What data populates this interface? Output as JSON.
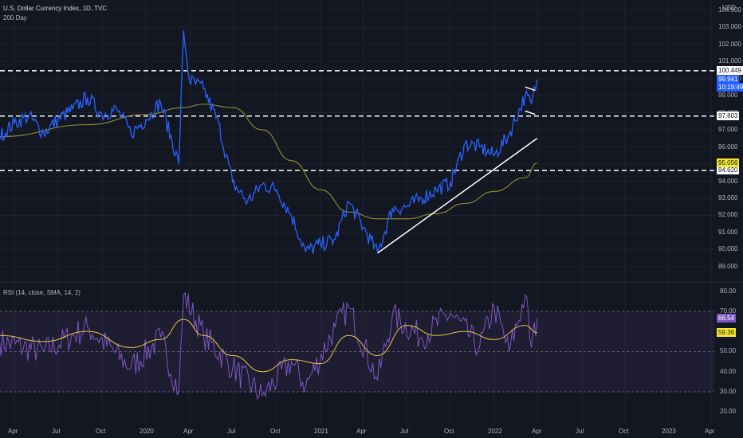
{
  "header": {
    "title": "U.S. Dollar Currency Index, 1D, TVC",
    "indicator": "200 Day",
    "currency": "USD",
    "countdown": "10:19:49"
  },
  "rsi_header": "RSI (14, close, SMA, 14, 2)",
  "colors": {
    "background": "#131722",
    "price_line": "#2962ff",
    "ma_line": "#8b8530",
    "rsi_line": "#7e57c2",
    "rsi_ma": "#e8c547",
    "price_tag": "#2962ff",
    "ma_tag": "#f5e52d",
    "rsi_tag": "#7e57c2",
    "grid": "#1e222d"
  },
  "chart_data": [
    {
      "type": "line",
      "title": "U.S. Dollar Currency Index, 1D, TVC",
      "ylabel": "USD",
      "ylim": [
        88.3,
        104.4
      ],
      "x_ticks": [
        "Apr",
        "Jul",
        "Oct",
        "2020",
        "Apr",
        "Jul",
        "Oct",
        "2021",
        "Apr",
        "Jul",
        "Oct",
        "2022",
        "Apr",
        "Jul",
        "Oct",
        "2023",
        "Apr"
      ],
      "y_ticks": [
        89.0,
        90.0,
        91.0,
        92.0,
        93.0,
        94.0,
        95.0,
        96.0,
        97.0,
        98.0,
        99.0,
        100.0,
        101.0,
        102.0,
        103.0,
        104.0
      ],
      "y_tick_labels": [
        "89.000",
        "90.000",
        "91.000",
        "92.000",
        "93.000",
        "94.000",
        "95.000",
        "96.000",
        "97.000",
        "98.000",
        "99.000",
        "100.000",
        "101.000",
        "102.000",
        "103.000",
        "104.000"
      ],
      "series": [
        {
          "name": "U.S. Dollar Currency Index",
          "x": [
            "2019-03",
            "2019-04",
            "2019-05",
            "2019-06",
            "2019-07",
            "2019-08",
            "2019-09",
            "2019-10",
            "2019-11",
            "2019-12",
            "2020-01",
            "2020-02",
            "2020-03-10",
            "2020-03-20",
            "2020-04",
            "2020-05",
            "2020-06",
            "2020-07",
            "2020-08",
            "2020-09",
            "2020-10",
            "2020-11",
            "2020-12",
            "2021-01",
            "2021-02",
            "2021-03",
            "2021-04",
            "2021-05",
            "2021-06",
            "2021-07",
            "2021-08",
            "2021-09",
            "2021-10",
            "2021-11",
            "2021-12",
            "2022-01",
            "2022-02",
            "2022-03-07",
            "2022-03-20",
            "2022-04"
          ],
          "values": [
            96.6,
            97.4,
            97.8,
            96.8,
            97.6,
            98.2,
            98.9,
            97.9,
            98.2,
            96.8,
            97.6,
            98.6,
            95.0,
            102.8,
            99.9,
            99.4,
            97.4,
            93.9,
            92.8,
            93.8,
            93.5,
            92.0,
            89.9,
            90.3,
            90.6,
            92.8,
            91.3,
            89.8,
            92.4,
            92.5,
            93.0,
            93.5,
            93.9,
            96.2,
            96.0,
            95.5,
            96.7,
            99.0,
            98.5,
            99.941
          ]
        },
        {
          "name": "200 Day",
          "x": [
            "2019-03",
            "2019-09",
            "2020-01",
            "2020-03-20",
            "2020-05",
            "2020-07",
            "2020-09",
            "2020-11",
            "2021-01",
            "2021-03",
            "2021-05",
            "2021-07",
            "2021-09",
            "2021-11",
            "2022-01",
            "2022-03-07",
            "2022-04"
          ],
          "values": [
            96.6,
            97.3,
            97.9,
            98.3,
            98.5,
            98.3,
            97.0,
            95.2,
            93.5,
            92.2,
            91.8,
            91.8,
            92.1,
            92.7,
            93.4,
            94.2,
            95.056
          ]
        }
      ],
      "levels": [
        100.449,
        97.803,
        94.62
      ],
      "level_labels": [
        "100.449",
        "97.803",
        "94.620"
      ],
      "trendline": {
        "from": [
          "2021-05",
          89.8
        ],
        "to": [
          "2022-04",
          96.5
        ]
      },
      "last_price": 99.941,
      "last_price_label": "99.941",
      "ma_last_label": "95.056"
    },
    {
      "type": "line",
      "title": "RSI (14, close, SMA, 14, 2)",
      "ylim": [
        15,
        83
      ],
      "y_ticks": [
        20,
        30,
        40,
        50,
        60,
        70,
        80
      ],
      "y_tick_labels": [
        "20.00",
        "30.00",
        "40.00",
        "50.00",
        "60.00",
        "70.00",
        "80.00"
      ],
      "bands": [
        30,
        50,
        70
      ],
      "series": [
        {
          "name": "RSI",
          "x": [
            "2019-03",
            "2019-06",
            "2019-09",
            "2019-12",
            "2020-02",
            "2020-03-10",
            "2020-03-20",
            "2020-05",
            "2020-07",
            "2020-09",
            "2020-11",
            "2020-12",
            "2021-02",
            "2021-03",
            "2021-05",
            "2021-06",
            "2021-08",
            "2021-10",
            "2021-12",
            "2022-01",
            "2022-02",
            "2022-03-07",
            "2022-03-20",
            "2022-04"
          ],
          "values": [
            55,
            50,
            62,
            42,
            57,
            30,
            78,
            58,
            42,
            28,
            45,
            33,
            62,
            72,
            36,
            68,
            57,
            69,
            52,
            72,
            50,
            78,
            52,
            66.54
          ]
        },
        {
          "name": "RSI-based MA",
          "x": [
            "2019-03",
            "2019-06",
            "2019-09",
            "2019-12",
            "2020-02",
            "2020-03-20",
            "2020-05",
            "2020-07",
            "2020-09",
            "2020-11",
            "2021-01",
            "2021-03",
            "2021-05",
            "2021-07",
            "2021-09",
            "2021-11",
            "2022-01",
            "2022-03-07",
            "2022-04"
          ],
          "values": [
            58,
            55,
            60,
            52,
            56,
            66,
            58,
            48,
            40,
            46,
            44,
            58,
            48,
            63,
            58,
            60,
            56,
            63,
            59.36
          ]
        }
      ],
      "last_value_label": "66.54",
      "ma_last_label": "59.36"
    }
  ]
}
